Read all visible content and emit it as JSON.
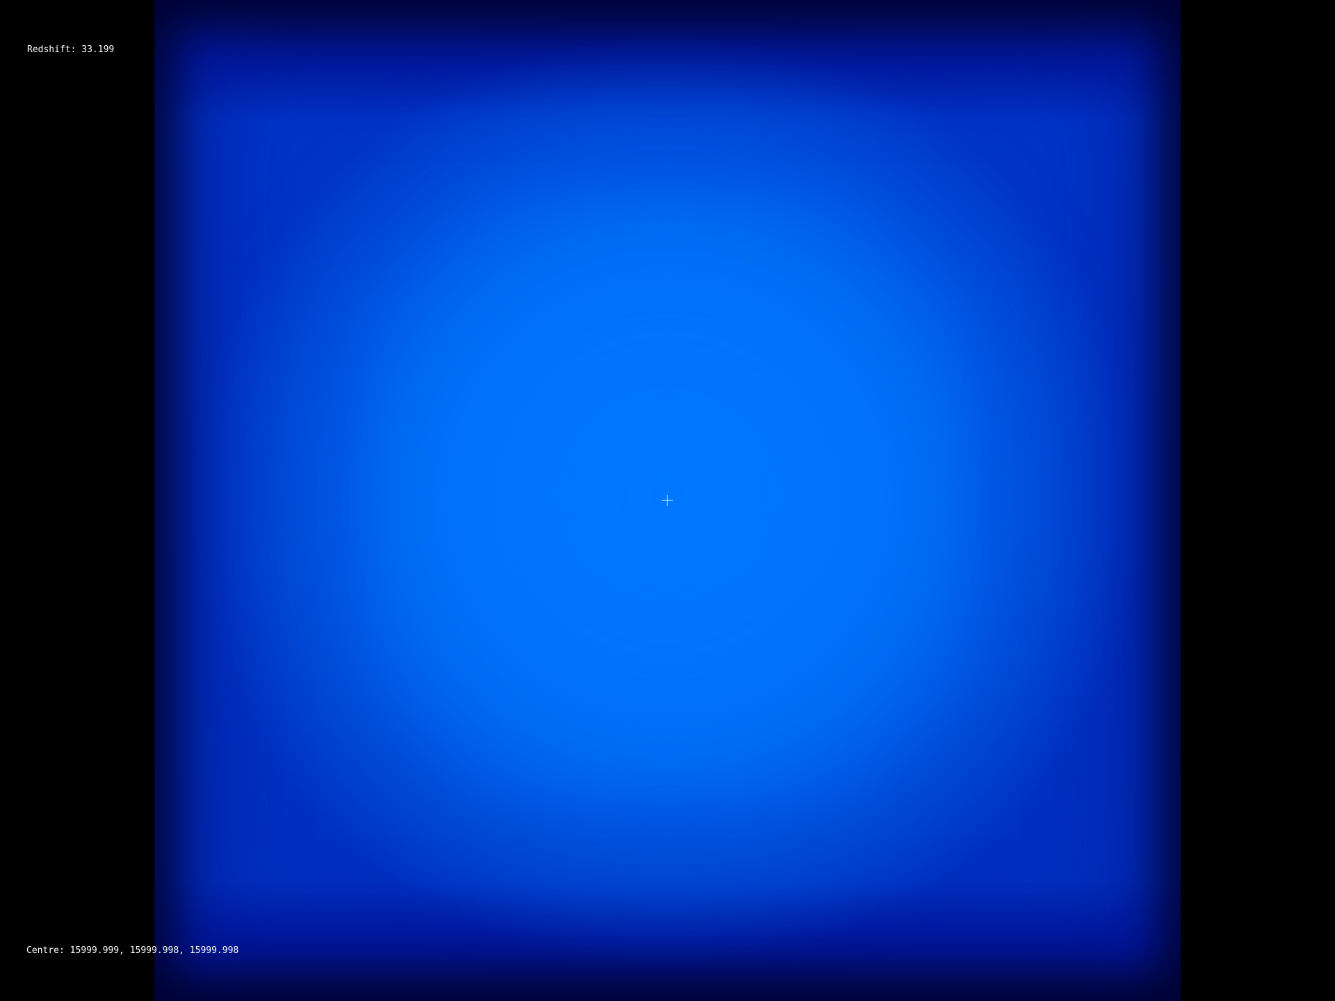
{
  "hud": {
    "redshift_label": "Redshift: 33.199",
    "centre_label": "Centre: 15999.999, 15999.998, 15999.998"
  },
  "view": {
    "background_color": "#000000",
    "glow_colors": [
      "#000a55",
      "#0034c8",
      "#0078ff"
    ],
    "crosshair_icon": "crosshair-icon"
  }
}
